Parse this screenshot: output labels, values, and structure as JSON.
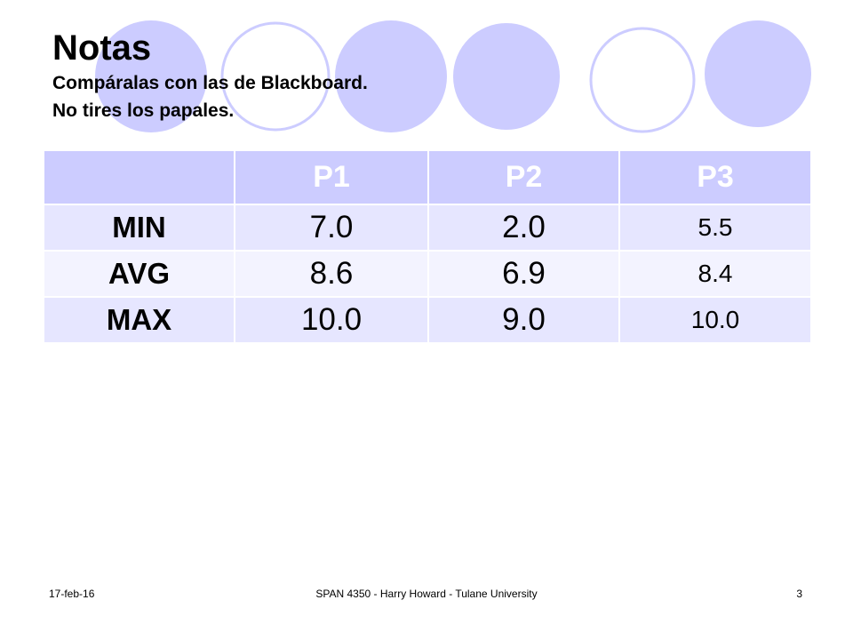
{
  "slide": {
    "title": "Notas",
    "subtitle_lines": [
      "Compáralas con las de Blackboard.",
      "No tires los papales."
    ]
  },
  "table": {
    "headers": [
      "",
      "P1",
      "P2",
      "P3"
    ],
    "rows": [
      {
        "label": "MIN",
        "values": [
          "7.0",
          "2.0",
          "5.5"
        ]
      },
      {
        "label": "AVG",
        "values": [
          "8.6",
          "6.9",
          "8.4"
        ]
      },
      {
        "label": "MAX",
        "values": [
          "10.0",
          "9.0",
          "10.0"
        ]
      }
    ]
  },
  "footer": {
    "date": "17-feb-16",
    "course": "SPAN 4350 - Harry Howard - Tulane University",
    "page": "3"
  },
  "colors": {
    "circle_fill": "#ccccff",
    "circle_ring": "#ccccff",
    "header_bg": "#ccccff",
    "row_odd_bg": "#e6e6ff",
    "row_even_bg": "#f3f3ff"
  }
}
